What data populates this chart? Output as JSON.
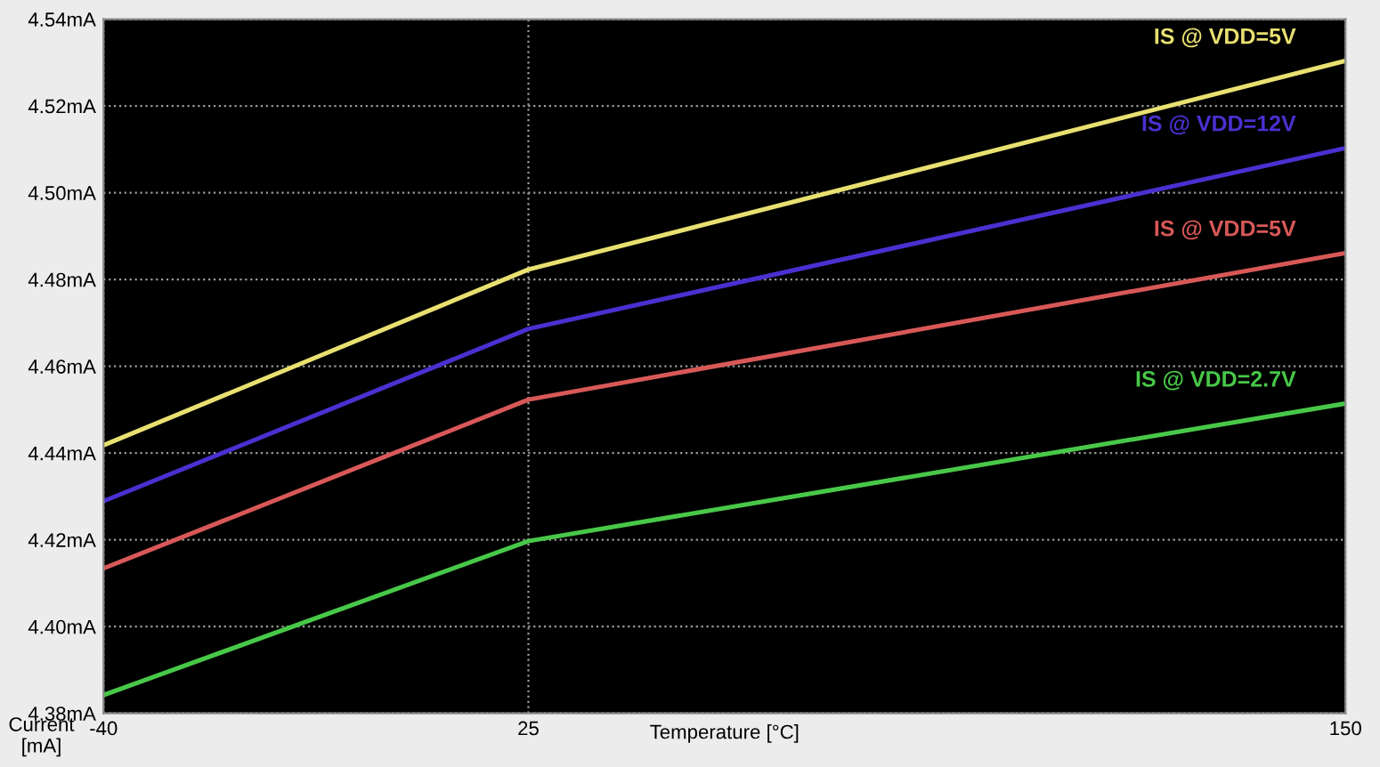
{
  "chart_data": {
    "type": "line",
    "xlabel": "Temperature [°C]",
    "ylabel": "Current\n[mA]",
    "x": [
      -40,
      25,
      150
    ],
    "series": [
      {
        "name": "IS @ VDD=5V",
        "color": "#e8e070",
        "values": [
          4.4418,
          4.4823,
          4.5304
        ]
      },
      {
        "name": "IS @ VDD=12V",
        "color": "#4a30d0",
        "values": [
          4.4289,
          4.4686,
          4.5103
        ]
      },
      {
        "name": "IS @ VDD=5V",
        "color": "#d85858",
        "values": [
          4.4134,
          4.4523,
          4.4861
        ]
      },
      {
        "name": "IS @ VDD=2.7V",
        "color": "#48c848",
        "values": [
          4.3842,
          4.4197,
          4.4514
        ]
      }
    ],
    "xlim": [
      -40,
      150
    ],
    "ylim": [
      4.38,
      4.54
    ],
    "xticks": [
      -40,
      25,
      150
    ],
    "yticks": [
      {
        "value": 4.38,
        "label": "4.38mA"
      },
      {
        "value": 4.4,
        "label": "4.40mA"
      },
      {
        "value": 4.42,
        "label": "4.42mA"
      },
      {
        "value": 4.44,
        "label": "4.44mA"
      },
      {
        "value": 4.46,
        "label": "4.46mA"
      },
      {
        "value": 4.48,
        "label": "4.48mA"
      },
      {
        "value": 4.5,
        "label": "4.50mA"
      },
      {
        "value": 4.52,
        "label": "4.52mA"
      },
      {
        "value": 4.54,
        "label": "4.54mA"
      }
    ],
    "grid": true,
    "marker": "none",
    "line_style": "solid"
  }
}
